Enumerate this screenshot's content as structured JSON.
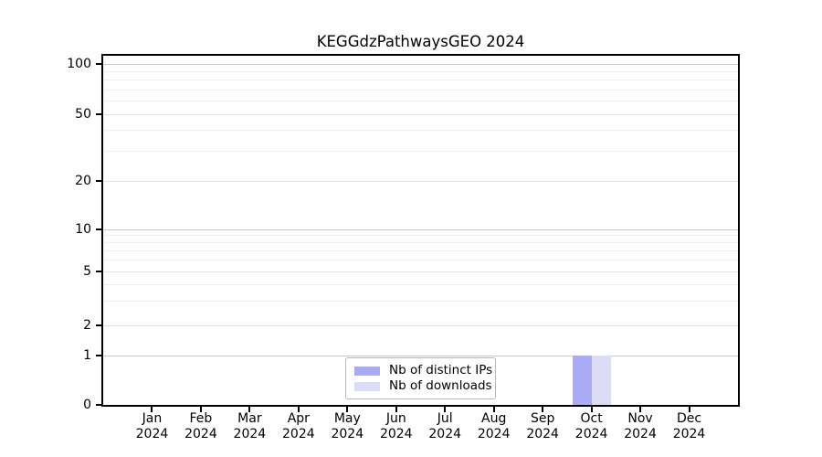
{
  "chart_data": {
    "type": "bar",
    "title": "KEGGdzPathwaysGEO 2024",
    "year": "2024",
    "categories": [
      "Jan",
      "Feb",
      "Mar",
      "Apr",
      "May",
      "Jun",
      "Jul",
      "Aug",
      "Sep",
      "Oct",
      "Nov",
      "Dec"
    ],
    "series": [
      {
        "name": "Nb of distinct IPs",
        "color": "#aaaaf5",
        "values": [
          0,
          0,
          0,
          0,
          0,
          0,
          0,
          0,
          0,
          1,
          0,
          0
        ]
      },
      {
        "name": "Nb of downloads",
        "color": "#dcdcf8",
        "values": [
          0,
          0,
          0,
          0,
          0,
          0,
          0,
          0,
          0,
          1,
          0,
          0
        ]
      }
    ],
    "xlabel": "",
    "ylabel": "",
    "y_axis": {
      "scale": "pseudo-log",
      "ticks": [
        0,
        1,
        2,
        5,
        10,
        20,
        50,
        100
      ],
      "minor_ticks": [
        3,
        4,
        6,
        7,
        8,
        9,
        30,
        40,
        60,
        70,
        80,
        90
      ],
      "range": [
        0,
        115
      ]
    },
    "legend": {
      "position": "bottom-center"
    },
    "grid": {
      "major_color": "#c8c8c8",
      "sub_color": "#e4e4e4",
      "minor_color": "#efefef"
    },
    "colors": {
      "spine": "#000000",
      "background": "#ffffff",
      "legend_border": "#b9b9b9"
    }
  }
}
